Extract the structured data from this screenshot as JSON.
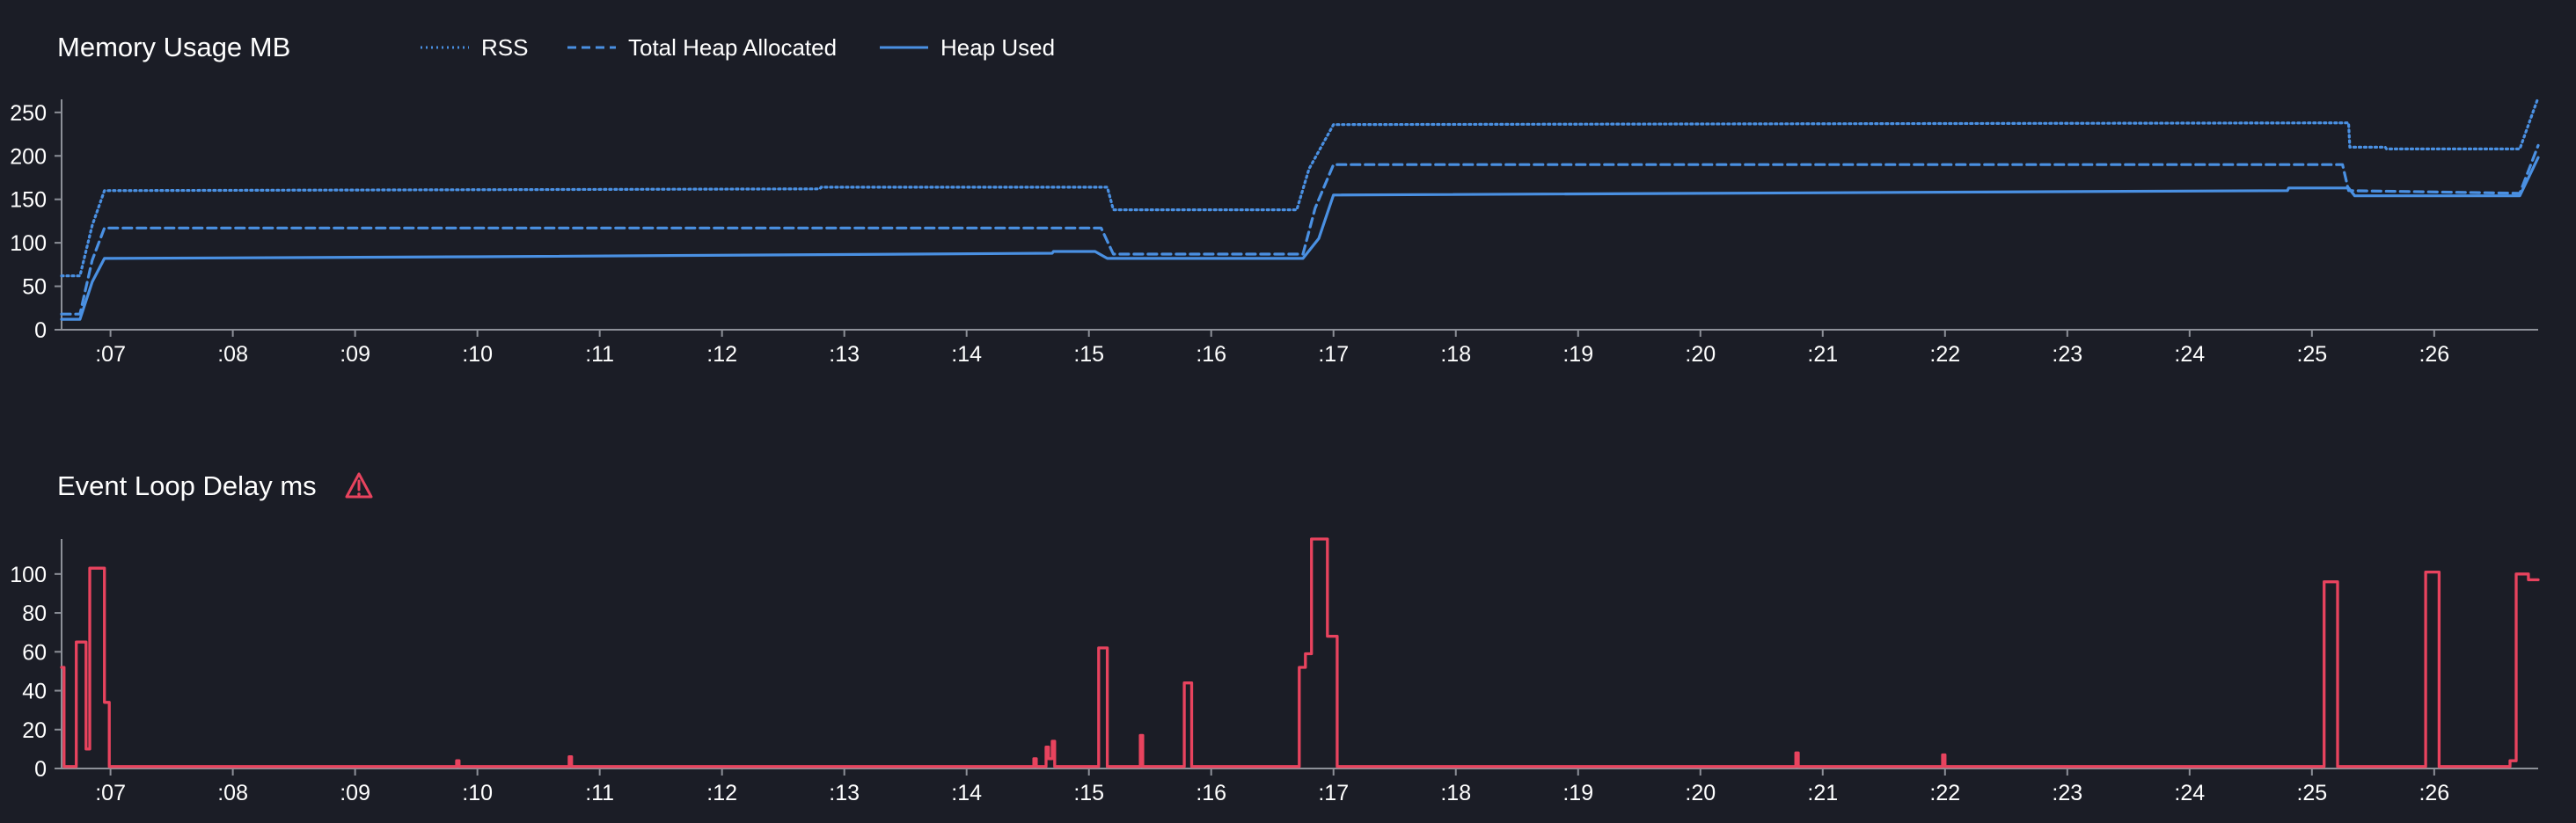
{
  "colors": {
    "background": "#1b1d26",
    "memory_series": "#4a90e2",
    "event_loop_series": "#e8435e",
    "axis": "#8d9098",
    "text": "#ffffff"
  },
  "icons": {
    "warning": "warning-triangle-icon"
  },
  "chart_data": [
    {
      "id": "memory",
      "type": "line",
      "title": "Memory Usage MB",
      "xlabel": "",
      "ylabel": "",
      "legend_position": "top",
      "grid": false,
      "xlim": [
        6.6,
        26.85
      ],
      "ylim": [
        0,
        265
      ],
      "x_ticks": [
        7,
        8,
        9,
        10,
        11,
        12,
        13,
        14,
        15,
        16,
        17,
        18,
        19,
        20,
        21,
        22,
        23,
        24,
        25,
        26
      ],
      "x_tick_labels": [
        ":07",
        ":08",
        ":09",
        ":10",
        ":11",
        ":12",
        ":13",
        ":14",
        ":15",
        ":16",
        ":17",
        ":18",
        ":19",
        ":20",
        ":21",
        ":22",
        ":23",
        ":24",
        ":25",
        ":26"
      ],
      "y_ticks": [
        0,
        50,
        100,
        150,
        200,
        250
      ],
      "y_tick_labels": [
        "0",
        "50",
        "100",
        "150",
        "200",
        "250"
      ],
      "series": [
        {
          "name": "RSS",
          "style": "dotted",
          "points": [
            [
              6.6,
              62
            ],
            [
              6.75,
              62
            ],
            [
              6.85,
              120
            ],
            [
              6.95,
              160
            ],
            [
              12.8,
              162
            ],
            [
              12.81,
              164
            ],
            [
              15.15,
              164
            ],
            [
              15.2,
              138
            ],
            [
              16.7,
              138
            ],
            [
              16.8,
              185
            ],
            [
              17.0,
              236
            ],
            [
              25.3,
              238
            ],
            [
              25.31,
              210
            ],
            [
              25.6,
              210
            ],
            [
              25.61,
              208
            ],
            [
              26.7,
              208
            ],
            [
              26.85,
              267
            ]
          ]
        },
        {
          "name": "Total Heap Allocated",
          "style": "dashed",
          "points": [
            [
              6.6,
              18
            ],
            [
              6.75,
              18
            ],
            [
              6.85,
              80
            ],
            [
              6.95,
              117
            ],
            [
              15.1,
              117
            ],
            [
              15.2,
              87
            ],
            [
              16.75,
              87
            ],
            [
              16.85,
              140
            ],
            [
              17.0,
              190
            ],
            [
              25.25,
              190
            ],
            [
              25.3,
              160
            ],
            [
              26.7,
              157
            ],
            [
              26.85,
              212
            ]
          ]
        },
        {
          "name": "Heap Used",
          "style": "solid",
          "points": [
            [
              6.6,
              12
            ],
            [
              6.75,
              12
            ],
            [
              6.85,
              55
            ],
            [
              6.95,
              82
            ],
            [
              10.0,
              84
            ],
            [
              14.7,
              88
            ],
            [
              14.71,
              90
            ],
            [
              15.05,
              90
            ],
            [
              15.15,
              82
            ],
            [
              16.75,
              82
            ],
            [
              16.88,
              105
            ],
            [
              17.0,
              155
            ],
            [
              24.8,
              160
            ],
            [
              24.81,
              163
            ],
            [
              25.3,
              163
            ],
            [
              25.35,
              154
            ],
            [
              26.7,
              154
            ],
            [
              26.85,
              198
            ]
          ]
        }
      ]
    },
    {
      "id": "event-loop",
      "type": "line",
      "title": "Event Loop Delay ms",
      "xlabel": "",
      "ylabel": "",
      "grid": false,
      "xlim": [
        6.6,
        26.85
      ],
      "ylim": [
        0,
        118
      ],
      "x_ticks": [
        7,
        8,
        9,
        10,
        11,
        12,
        13,
        14,
        15,
        16,
        17,
        18,
        19,
        20,
        21,
        22,
        23,
        24,
        25,
        26
      ],
      "x_tick_labels": [
        ":07",
        ":08",
        ":09",
        ":10",
        ":11",
        ":12",
        ":13",
        ":14",
        ":15",
        ":16",
        ":17",
        ":18",
        ":19",
        ":20",
        ":21",
        ":22",
        ":23",
        ":24",
        ":25",
        ":26"
      ],
      "y_ticks": [
        0,
        20,
        40,
        60,
        80,
        100
      ],
      "y_tick_labels": [
        "0",
        "20",
        "40",
        "60",
        "80",
        "100"
      ],
      "series": [
        {
          "name": "",
          "style": "step",
          "points": [
            [
              6.6,
              52
            ],
            [
              6.62,
              52
            ],
            [
              6.62,
              1
            ],
            [
              6.72,
              1
            ],
            [
              6.72,
              65
            ],
            [
              6.8,
              65
            ],
            [
              6.8,
              10
            ],
            [
              6.83,
              10
            ],
            [
              6.83,
              103
            ],
            [
              6.95,
              103
            ],
            [
              6.95,
              34
            ],
            [
              6.99,
              34
            ],
            [
              6.99,
              1
            ],
            [
              9.83,
              1
            ],
            [
              9.83,
              4
            ],
            [
              9.85,
              4
            ],
            [
              9.85,
              1
            ],
            [
              10.75,
              1
            ],
            [
              10.75,
              6
            ],
            [
              10.77,
              6
            ],
            [
              10.77,
              1
            ],
            [
              14.55,
              1
            ],
            [
              14.55,
              5
            ],
            [
              14.57,
              5
            ],
            [
              14.57,
              1
            ],
            [
              14.65,
              1
            ],
            [
              14.65,
              11
            ],
            [
              14.67,
              11
            ],
            [
              14.67,
              5
            ],
            [
              14.7,
              5
            ],
            [
              14.7,
              14
            ],
            [
              14.72,
              14
            ],
            [
              14.72,
              1
            ],
            [
              15.08,
              1
            ],
            [
              15.08,
              62
            ],
            [
              15.15,
              62
            ],
            [
              15.15,
              1
            ],
            [
              15.42,
              1
            ],
            [
              15.42,
              17
            ],
            [
              15.44,
              17
            ],
            [
              15.44,
              1
            ],
            [
              15.78,
              1
            ],
            [
              15.78,
              44
            ],
            [
              15.84,
              44
            ],
            [
              15.84,
              1
            ],
            [
              16.72,
              1
            ],
            [
              16.72,
              52
            ],
            [
              16.77,
              52
            ],
            [
              16.77,
              59
            ],
            [
              16.82,
              59
            ],
            [
              16.82,
              118
            ],
            [
              16.95,
              118
            ],
            [
              16.95,
              68
            ],
            [
              17.03,
              68
            ],
            [
              17.03,
              1
            ],
            [
              20.78,
              1
            ],
            [
              20.78,
              8
            ],
            [
              20.8,
              8
            ],
            [
              20.8,
              1
            ],
            [
              21.98,
              1
            ],
            [
              21.98,
              7
            ],
            [
              22.0,
              7
            ],
            [
              22.0,
              1
            ],
            [
              25.1,
              1
            ],
            [
              25.1,
              96
            ],
            [
              25.21,
              96
            ],
            [
              25.21,
              1
            ],
            [
              25.93,
              1
            ],
            [
              25.93,
              101
            ],
            [
              26.04,
              101
            ],
            [
              26.04,
              1
            ],
            [
              26.62,
              1
            ],
            [
              26.62,
              4
            ],
            [
              26.67,
              4
            ],
            [
              26.67,
              100
            ],
            [
              26.77,
              100
            ],
            [
              26.77,
              97
            ],
            [
              26.85,
              97
            ]
          ]
        }
      ]
    }
  ]
}
